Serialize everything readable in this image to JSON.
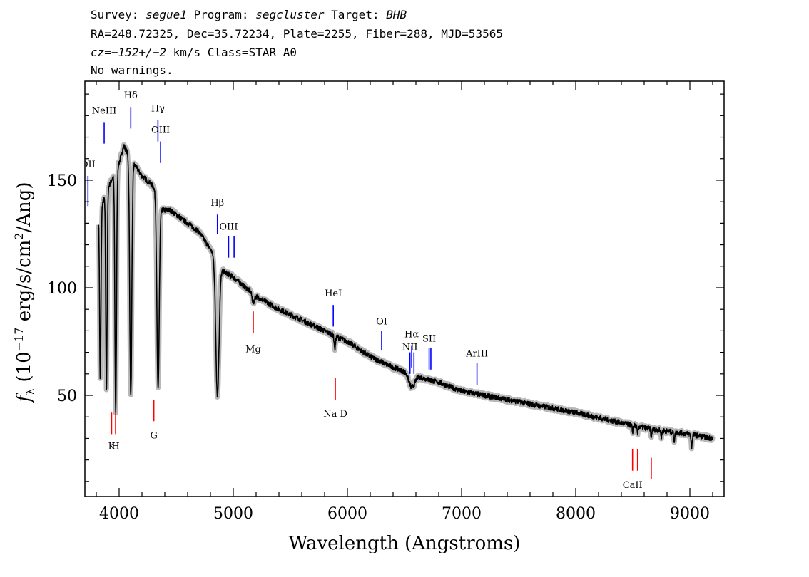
{
  "header": {
    "line1": {
      "survey_label": "Survey: ",
      "survey": "segue1",
      "program_label": " Program: ",
      "program": "segcluster",
      "target_label": " Target: ",
      "target": "BHB"
    },
    "line2": "RA=248.72325, Dec=35.72234, Plate=2255, Fiber=288, MJD=53565",
    "line3": {
      "cz": "cz=−152+/−2",
      "rest": " km/s Class=STAR A0"
    },
    "line4": "No warnings."
  },
  "chart_data": {
    "type": "line",
    "xlabel": "Wavelength (Angstroms)",
    "ylabel": "f_λ (10^-17 erg/s/cm^2/Ang)",
    "xlim": [
      3700,
      9300
    ],
    "ylim": [
      3,
      196
    ],
    "xticks": [
      4000,
      5000,
      6000,
      7000,
      8000,
      9000
    ],
    "yticks": [
      50,
      100,
      150
    ],
    "colors": {
      "spectrum": "#000000",
      "error_band": "#b8b8b8",
      "emission": "#0000ff",
      "absorption": "#ff0000"
    },
    "continuum_points": [
      [
        3820,
        134
      ],
      [
        3900,
        146
      ],
      [
        4000,
        158
      ],
      [
        4040,
        166
      ],
      [
        4100,
        160
      ],
      [
        4200,
        152
      ],
      [
        4300,
        147
      ],
      [
        4370,
        136
      ],
      [
        4450,
        136
      ],
      [
        4600,
        130
      ],
      [
        4700,
        126
      ],
      [
        4800,
        118
      ],
      [
        4900,
        108
      ],
      [
        5000,
        105
      ],
      [
        5200,
        96
      ],
      [
        5400,
        90
      ],
      [
        5600,
        85
      ],
      [
        5800,
        80
      ],
      [
        6000,
        75
      ],
      [
        6200,
        68
      ],
      [
        6400,
        63
      ],
      [
        6600,
        59
      ],
      [
        6800,
        56
      ],
      [
        7000,
        52
      ],
      [
        7200,
        50
      ],
      [
        7500,
        47
      ],
      [
        8000,
        42
      ],
      [
        8500,
        36
      ],
      [
        8700,
        34
      ],
      [
        9000,
        32
      ],
      [
        9200,
        30
      ]
    ],
    "absorption_features": [
      {
        "wave": 3835,
        "depth": 80,
        "width": 6
      },
      {
        "wave": 3889,
        "depth": 92,
        "width": 6
      },
      {
        "wave": 3970,
        "depth": 112,
        "width": 7
      },
      {
        "wave": 4102,
        "depth": 110,
        "width": 9
      },
      {
        "wave": 4341,
        "depth": 88,
        "width": 10
      },
      {
        "wave": 4861,
        "depth": 62,
        "width": 14
      },
      {
        "wave": 5175,
        "depth": 4,
        "width": 10
      },
      {
        "wave": 5890,
        "depth": 6,
        "width": 6
      },
      {
        "wave": 6563,
        "depth": 6,
        "width": 25
      },
      {
        "wave": 8498,
        "depth": 3,
        "width": 4
      },
      {
        "wave": 8542,
        "depth": 4,
        "width": 4
      },
      {
        "wave": 8662,
        "depth": 4,
        "width": 4
      },
      {
        "wave": 8750,
        "depth": 3,
        "width": 4
      },
      {
        "wave": 8863,
        "depth": 4,
        "width": 5
      },
      {
        "wave": 9015,
        "depth": 6,
        "width": 5
      }
    ],
    "emission_lines": [
      {
        "label": "OII",
        "wave": 3727,
        "y0": 138,
        "y1": 152,
        "label_y": 156
      },
      {
        "label": "NeIII",
        "wave": 3869,
        "y0": 167,
        "y1": 177,
        "label_y": 181
      },
      {
        "label": "Hδ",
        "wave": 4102,
        "y0": 174,
        "y1": 184,
        "label_y": 188
      },
      {
        "label": "Hγ",
        "wave": 4340,
        "y0": 168,
        "y1": 178,
        "label_y": 182
      },
      {
        "label": "OIII",
        "wave": 4363,
        "y0": 158,
        "y1": 168,
        "label_y": 172
      },
      {
        "label": "Hβ",
        "wave": 4861,
        "y0": 125,
        "y1": 134,
        "label_y": 138
      },
      {
        "label": "OIII",
        "wave": 4959,
        "y0": 114,
        "y1": 124,
        "label_y": 127
      },
      {
        "label": "OIII",
        "wave": 5007,
        "y0": 114,
        "y1": 124
      },
      {
        "label": "HeI",
        "wave": 5876,
        "y0": 82,
        "y1": 92,
        "label_y": 96
      },
      {
        "label": "OI",
        "wave": 6300,
        "y0": 71,
        "y1": 80,
        "label_y": 83
      },
      {
        "label": "NII",
        "wave": 6548,
        "y0": 60,
        "y1": 70,
        "label_y": 71
      },
      {
        "label": "Hα",
        "wave": 6563,
        "y0": 63,
        "y1": 73,
        "label_y": 77
      },
      {
        "label": "NII",
        "wave": 6583,
        "y0": 60,
        "y1": 70
      },
      {
        "label": "SII",
        "wave": 6716,
        "y0": 62,
        "y1": 72,
        "label_y": 75
      },
      {
        "label": "SII",
        "wave": 6731,
        "y0": 62,
        "y1": 72
      },
      {
        "label": "ArIII",
        "wave": 7135,
        "y0": 55,
        "y1": 65,
        "label_y": 68
      }
    ],
    "absorption_lines": [
      {
        "label": "K",
        "wave": 3934,
        "y0": 32,
        "y1": 42,
        "label_y": 25
      },
      {
        "label": "H",
        "wave": 3969,
        "y0": 32,
        "y1": 42,
        "label_y": 25
      },
      {
        "label": "G",
        "wave": 4304,
        "y0": 38,
        "y1": 48,
        "label_y": 30
      },
      {
        "label": "Mg",
        "wave": 5175,
        "y0": 79,
        "y1": 89,
        "label_y": 70
      },
      {
        "label": "Na D",
        "wave": 5894,
        "y0": 48,
        "y1": 58,
        "label_y": 40
      },
      {
        "label": "CaII",
        "wave": 8498,
        "y0": 15,
        "y1": 25,
        "label_y": 7
      },
      {
        "label": "CaII",
        "wave": 8542,
        "y0": 15,
        "y1": 25
      },
      {
        "label": "CaII",
        "wave": 8662,
        "y0": 11,
        "y1": 21
      }
    ]
  }
}
